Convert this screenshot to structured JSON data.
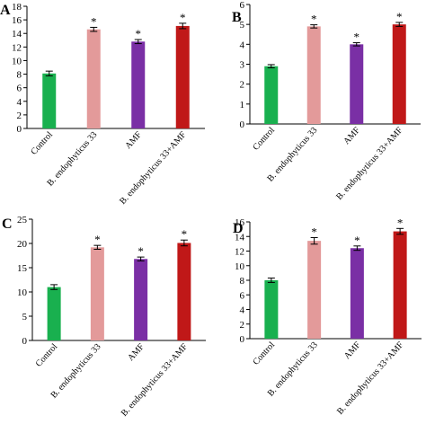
{
  "chart_data": [
    {
      "type": "bar",
      "panel_label": "A",
      "categories": [
        "Control",
        "B. endophyticus 33",
        "AMF",
        "B. endophyticus 33+AMF"
      ],
      "values": [
        8.1,
        14.6,
        12.8,
        15.1
      ],
      "errors": [
        0.35,
        0.3,
        0.3,
        0.4
      ],
      "significance": [
        "",
        "*",
        "*",
        "*"
      ],
      "colors": [
        "#19b04f",
        "#e39a9a",
        "#7a2fa5",
        "#c01818"
      ],
      "ylim": [
        0,
        18
      ],
      "yticks": [
        0,
        2,
        4,
        6,
        8,
        10,
        12,
        14,
        16,
        18
      ],
      "grid": false,
      "legend": "none"
    },
    {
      "type": "bar",
      "panel_label": "B",
      "categories": [
        "Control",
        "B. endophyticus 33",
        "AMF",
        "B. endophyticus 33+AMF"
      ],
      "values": [
        2.9,
        4.9,
        4.0,
        5.0
      ],
      "errors": [
        0.08,
        0.08,
        0.08,
        0.1
      ],
      "significance": [
        "",
        "*",
        "*",
        "*"
      ],
      "colors": [
        "#19b04f",
        "#e39a9a",
        "#7a2fa5",
        "#c01818"
      ],
      "ylim": [
        0,
        6
      ],
      "yticks": [
        0,
        1,
        2,
        3,
        4,
        5,
        6
      ],
      "grid": false,
      "legend": "none"
    },
    {
      "type": "bar",
      "panel_label": "C",
      "categories": [
        "Control",
        "B. endophyticus 33",
        "AMF",
        "B. endophyticus 33+AMF"
      ],
      "values": [
        11.0,
        19.2,
        16.8,
        20.1
      ],
      "errors": [
        0.5,
        0.4,
        0.4,
        0.6
      ],
      "significance": [
        "",
        "*",
        "*",
        "*"
      ],
      "colors": [
        "#19b04f",
        "#e39a9a",
        "#7a2fa5",
        "#c01818"
      ],
      "ylim": [
        0,
        25
      ],
      "yticks": [
        0,
        5,
        10,
        15,
        20,
        25
      ],
      "grid": false,
      "legend": "none"
    },
    {
      "type": "bar",
      "panel_label": "D",
      "categories": [
        "Control",
        "B. endophyticus 33",
        "AMF",
        "B. endophyticus 33+AMF"
      ],
      "values": [
        8.0,
        13.4,
        12.4,
        14.7
      ],
      "errors": [
        0.3,
        0.45,
        0.3,
        0.4
      ],
      "significance": [
        "",
        "*",
        "*",
        "*"
      ],
      "colors": [
        "#19b04f",
        "#e39a9a",
        "#7a2fa5",
        "#c01818"
      ],
      "ylim": [
        0,
        16
      ],
      "yticks": [
        0,
        2,
        4,
        6,
        8,
        10,
        12,
        14,
        16
      ],
      "grid": false,
      "legend": "none"
    }
  ]
}
